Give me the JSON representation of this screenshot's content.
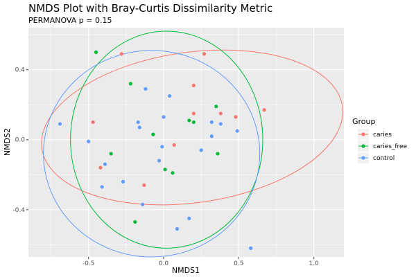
{
  "chart_data": {
    "type": "scatter",
    "title": "NMDS Plot with Bray-Curtis Dissimilarity Metric",
    "subtitle": "PERMANOVA p = 0.15",
    "xlabel": "NMDS1",
    "ylabel": "NMDS2",
    "xlim": [
      -0.9,
      1.2
    ],
    "ylim": [
      -0.67,
      0.64
    ],
    "xticks": [
      -0.5,
      0.0,
      0.5,
      1.0
    ],
    "xtick_labels": [
      "-0.5",
      "0.0",
      "0.5",
      "1.0"
    ],
    "yticks": [
      -0.4,
      0.0,
      0.4
    ],
    "ytick_labels": [
      "-0.4",
      "0.0",
      "0.4"
    ],
    "grid": true,
    "legend": {
      "title": "Group",
      "placement": "right"
    },
    "series": [
      {
        "name": "caries",
        "color": "#F8766D",
        "points": [
          [
            -0.28,
            0.49
          ],
          [
            0.27,
            0.49
          ],
          [
            0.2,
            0.31
          ],
          [
            -0.47,
            0.1
          ],
          [
            0.2,
            0.15
          ],
          [
            0.38,
            0.15
          ],
          [
            0.48,
            0.13
          ],
          [
            0.67,
            0.17
          ],
          [
            0.07,
            -0.03
          ],
          [
            -0.42,
            -0.16
          ],
          [
            -0.13,
            -0.26
          ]
        ],
        "ellipse": {
          "center": [
            0.19,
            0.07
          ],
          "semi_axes": [
            1.01,
            0.43
          ],
          "angle_deg": 8
        }
      },
      {
        "name": "caries_free",
        "color": "#00BA38",
        "points": [
          [
            -0.45,
            0.5
          ],
          [
            -0.22,
            0.32
          ],
          [
            0.35,
            0.19
          ],
          [
            0.17,
            0.11
          ],
          [
            0.2,
            0.1
          ],
          [
            -0.07,
            0.03
          ],
          [
            0.36,
            -0.08
          ],
          [
            -0.35,
            -0.08
          ],
          [
            0.01,
            -0.17
          ],
          [
            0.06,
            -0.19
          ],
          [
            -0.19,
            -0.47
          ]
        ],
        "ellipse": {
          "center": [
            0.02,
            0.0
          ],
          "semi_axes": [
            0.64,
            0.62
          ],
          "angle_deg": 0
        }
      },
      {
        "name": "control",
        "color": "#619CFF",
        "points": [
          [
            -0.69,
            0.09
          ],
          [
            -0.12,
            0.29
          ],
          [
            0.04,
            0.25
          ],
          [
            0.0,
            0.13
          ],
          [
            -0.17,
            0.1
          ],
          [
            -0.16,
            0.07
          ],
          [
            0.32,
            0.1
          ],
          [
            0.38,
            0.09
          ],
          [
            0.49,
            0.05
          ],
          [
            0.32,
            0.02
          ],
          [
            -0.5,
            -0.01
          ],
          [
            -0.01,
            -0.04
          ],
          [
            0.25,
            -0.06
          ],
          [
            -0.03,
            -0.12
          ],
          [
            -0.39,
            -0.14
          ],
          [
            -0.27,
            -0.24
          ],
          [
            -0.41,
            -0.27
          ],
          [
            -0.14,
            -0.37
          ],
          [
            0.17,
            -0.45
          ],
          [
            0.09,
            -0.51
          ],
          [
            0.58,
            -0.62
          ]
        ],
        "ellipse": {
          "center": [
            -0.08,
            -0.08
          ],
          "semi_axes": [
            0.72,
            0.59
          ],
          "angle_deg": 0
        }
      }
    ]
  }
}
